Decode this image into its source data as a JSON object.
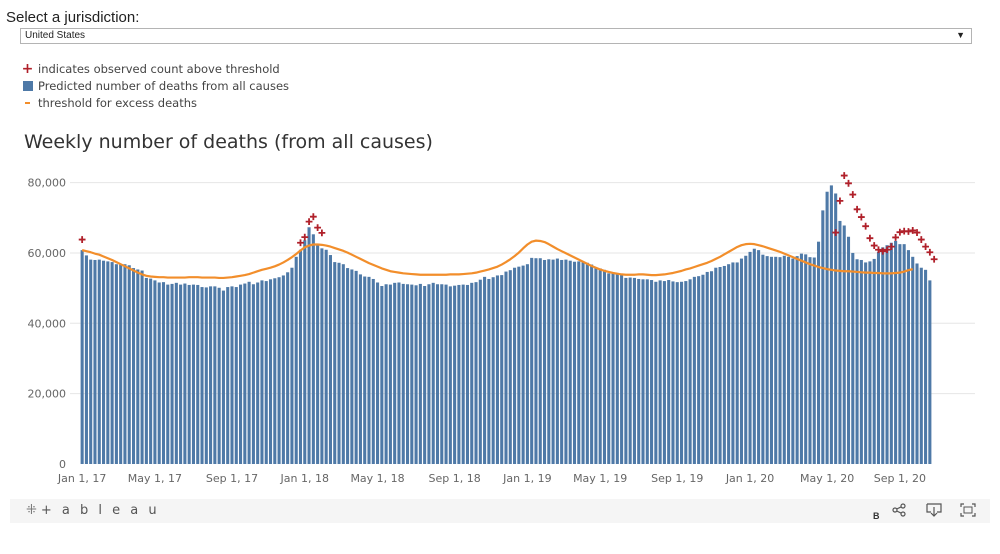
{
  "jurisdiction": {
    "label": "Select a jurisdiction:",
    "selected": "United States",
    "dropdown_icon": "triangle-down-icon"
  },
  "legend": {
    "items": [
      {
        "symbol": "plus",
        "label": "indicates observed count above threshold",
        "color": "#b0202a"
      },
      {
        "symbol": "square",
        "label": "Predicted number of deaths from all causes",
        "color": "#4e79a7"
      },
      {
        "symbol": "line",
        "label": "threshold for excess deaths",
        "color": "#f28e2b"
      }
    ]
  },
  "footer": {
    "brand": "+ a b l e a u",
    "badge": "B",
    "icons": [
      "tableau-logo-icon",
      "share-icon",
      "download-icon",
      "fullscreen-icon"
    ]
  },
  "colors": {
    "bar": "#4e79a7",
    "threshold": "#f28e2b",
    "marker": "#b0202a",
    "grid": "#e6e6e6"
  },
  "chart_data": {
    "type": "bar",
    "title": "Weekly number of deaths (from all causes)",
    "xlabel": "",
    "ylabel": "",
    "ylim": [
      0,
      85000
    ],
    "y_ticks": [
      0,
      20000,
      40000,
      60000,
      80000
    ],
    "y_tick_labels": [
      "0",
      "20,000",
      "40,000",
      "60,000",
      "80,000"
    ],
    "x_ticks": [
      {
        "week": 0,
        "label": "Jan 1, 17"
      },
      {
        "week": 17,
        "label": "May 1, 17"
      },
      {
        "week": 35,
        "label": "Sep 1, 17"
      },
      {
        "week": 52,
        "label": "Jan 1, 18"
      },
      {
        "week": 69,
        "label": "May 1, 18"
      },
      {
        "week": 87,
        "label": "Sep 1, 18"
      },
      {
        "week": 104,
        "label": "Jan 1, 19"
      },
      {
        "week": 121,
        "label": "May 1, 19"
      },
      {
        "week": 139,
        "label": "Sep 1, 19"
      },
      {
        "week": 156,
        "label": "Jan 1, 20"
      },
      {
        "week": 174,
        "label": "May 1, 20"
      },
      {
        "week": 191,
        "label": "Sep 1, 20"
      }
    ],
    "weekly_deaths": [
      60800,
      59300,
      58100,
      58000,
      58100,
      57800,
      57600,
      57400,
      56800,
      56700,
      56800,
      56500,
      55700,
      55300,
      55000,
      52900,
      52700,
      52200,
      51600,
      51700,
      51000,
      51200,
      51500,
      51000,
      51300,
      50900,
      51000,
      50900,
      50300,
      50200,
      50500,
      50500,
      50100,
      49300,
      50300,
      50500,
      50300,
      51000,
      51300,
      51800,
      51100,
      51600,
      52200,
      52000,
      52500,
      52800,
      53100,
      53600,
      54500,
      55800,
      58900,
      60900,
      63600,
      67300,
      65300,
      62300,
      61300,
      60900,
      59400,
      57400,
      57200,
      56800,
      55700,
      55300,
      54900,
      53900,
      53300,
      53200,
      52600,
      51600,
      50600,
      51100,
      51000,
      51500,
      51600,
      51200,
      51100,
      51000,
      50800,
      51200,
      50600,
      51100,
      51500,
      51100,
      51100,
      51000,
      50500,
      50700,
      50900,
      51000,
      50900,
      51500,
      51700,
      52400,
      53200,
      52600,
      53100,
      53600,
      53700,
      54700,
      55100,
      55800,
      56100,
      56400,
      56800,
      58600,
      58500,
      58500,
      58000,
      58200,
      58100,
      58400,
      58000,
      58100,
      57800,
      57500,
      57600,
      57400,
      57200,
      56700,
      55800,
      55600,
      55200,
      54200,
      54400,
      53900,
      53700,
      52900,
      53000,
      52900,
      52600,
      52500,
      52500,
      52300,
      51800,
      52200,
      52000,
      52300,
      51900,
      51700,
      51800,
      52000,
      52500,
      53200,
      53400,
      53800,
      54600,
      54800,
      55800,
      56000,
      56300,
      56800,
      57300,
      57300,
      58400,
      59200,
      60300,
      61200,
      60800,
      59500,
      59100,
      58900,
      58900,
      58800,
      59200,
      58900,
      58400,
      59100,
      59800,
      59600,
      58800,
      58700,
      63200,
      72100,
      77400,
      79200,
      76900,
      69100,
      67800,
      64600,
      60000,
      58200,
      58000,
      57300,
      57600,
      58300,
      60300,
      61600,
      62200,
      62900,
      63400,
      62500,
      62500,
      60800,
      58900,
      57000,
      55800,
      55200,
      52200
    ],
    "threshold": [
      60800,
      60500,
      60200,
      59800,
      59500,
      59000,
      58500,
      58000,
      57400,
      56800,
      56200,
      55600,
      55000,
      54400,
      53900,
      53500,
      53300,
      53200,
      53100,
      53100,
      53000,
      53000,
      53000,
      53000,
      53000,
      53100,
      53100,
      53100,
      53000,
      53000,
      53000,
      53000,
      52900,
      52900,
      53000,
      53100,
      53300,
      53500,
      53700,
      54000,
      54400,
      54800,
      55200,
      55500,
      55800,
      56200,
      56700,
      57300,
      58000,
      58800,
      59700,
      60700,
      61600,
      62100,
      62400,
      62400,
      62300,
      62100,
      61800,
      61400,
      61000,
      60600,
      60100,
      59500,
      58900,
      58300,
      57700,
      57100,
      56600,
      56100,
      55600,
      55200,
      54800,
      54600,
      54400,
      54200,
      54100,
      54000,
      53900,
      53800,
      53800,
      53800,
      53800,
      53800,
      53800,
      53800,
      53900,
      53900,
      53900,
      54000,
      54100,
      54200,
      54400,
      54700,
      55000,
      55300,
      55700,
      56100,
      56700,
      57400,
      58200,
      59100,
      60100,
      61300,
      62400,
      63200,
      63500,
      63400,
      63100,
      62500,
      61800,
      61100,
      60500,
      59900,
      59300,
      58700,
      58100,
      57500,
      56900,
      56300,
      55800,
      55300,
      54900,
      54600,
      54300,
      54100,
      53900,
      53800,
      53800,
      53800,
      53900,
      53900,
      53800,
      53700,
      53700,
      53800,
      53900,
      54100,
      54300,
      54600,
      54900,
      55300,
      55600,
      56000,
      56400,
      56800,
      57200,
      57700,
      58300,
      58900,
      59600,
      60300,
      61000,
      61700,
      62200,
      62500,
      62600,
      62500,
      62200,
      61900,
      61500,
      61100,
      60700,
      60300,
      59800,
      59300,
      58800,
      58300,
      57800,
      57300,
      56800,
      56400,
      56000,
      55700,
      55400,
      55200,
      55000,
      54900,
      54800,
      54800,
      54700,
      54600,
      54500,
      54400,
      54400,
      54300,
      54300,
      54200,
      54200,
      54200,
      54300,
      54400,
      54700,
      55100,
      55400
    ],
    "above_threshold_markers": [
      {
        "week": 0,
        "value": 63800
      },
      {
        "week": 51,
        "value": 62900
      },
      {
        "week": 52,
        "value": 64500
      },
      {
        "week": 53,
        "value": 68900
      },
      {
        "week": 54,
        "value": 70300
      },
      {
        "week": 55,
        "value": 67200
      },
      {
        "week": 56,
        "value": 65700
      },
      {
        "week": 176,
        "value": 65800
      },
      {
        "week": 177,
        "value": 74800
      },
      {
        "week": 178,
        "value": 82000
      },
      {
        "week": 179,
        "value": 79800
      },
      {
        "week": 180,
        "value": 76600
      },
      {
        "week": 181,
        "value": 72400
      },
      {
        "week": 182,
        "value": 70200
      },
      {
        "week": 183,
        "value": 67600
      },
      {
        "week": 184,
        "value": 64200
      },
      {
        "week": 185,
        "value": 62100
      },
      {
        "week": 186,
        "value": 60900
      },
      {
        "week": 187,
        "value": 60500
      },
      {
        "week": 188,
        "value": 60900
      },
      {
        "week": 189,
        "value": 61800
      },
      {
        "week": 190,
        "value": 64400
      },
      {
        "week": 191,
        "value": 65900
      },
      {
        "week": 192,
        "value": 66200
      },
      {
        "week": 193,
        "value": 66100
      },
      {
        "week": 194,
        "value": 66400
      },
      {
        "week": 195,
        "value": 65800
      },
      {
        "week": 196,
        "value": 63800
      },
      {
        "week": 197,
        "value": 61800
      },
      {
        "week": 198,
        "value": 60200
      },
      {
        "week": 199,
        "value": 58200
      }
    ]
  }
}
